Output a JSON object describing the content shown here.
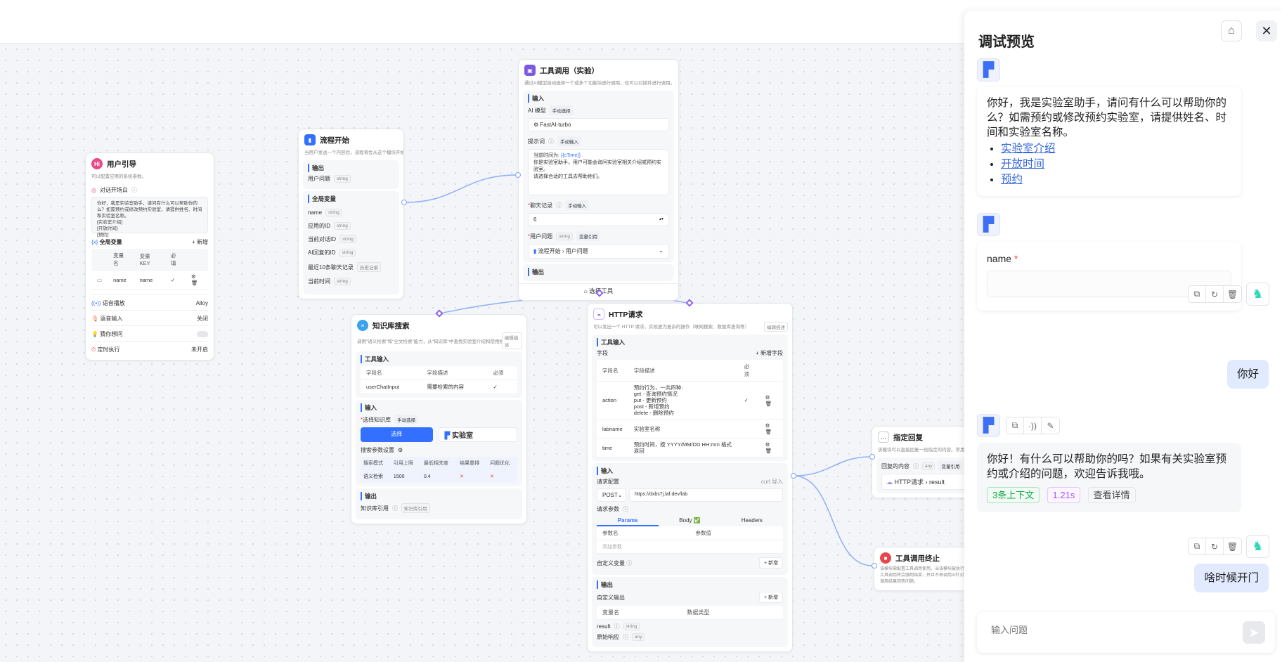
{
  "user_guide": {
    "title": "用户引导",
    "desc": "可以配置应用的系统参数。",
    "welcome_label": "对话开场白",
    "welcome_text": "你好，我是实验室助手，请问有什么可以帮助你的么？如需预约或修改预约实验室，请提供姓名、时间和实验室名称。\n[实验室介绍]\n[开放时间]\n[预约]",
    "global_vars_label": "全局变量",
    "add_label": "+ 新增",
    "var_headers": [
      "变量名",
      "变量 KEY",
      "必填"
    ],
    "vars": [
      {
        "name": "name",
        "key": "name",
        "required": "✓"
      }
    ],
    "tts_label": "语音播放",
    "tts_value": "Alloy",
    "voice_input_label": "语音输入",
    "voice_input_value": "关闭",
    "guess_label": "猜你想问",
    "schedule_label": "定时执行",
    "schedule_value": "未开启"
  },
  "flow_start": {
    "title": "流程开始",
    "desc": "当用户发送一个内容后，流程将会从这个模块开始执行。",
    "output_label": "输出",
    "output": {
      "name": "用户问题",
      "type": "string"
    },
    "globals_label": "全局变量",
    "globals": [
      {
        "name": "name",
        "type": "string"
      },
      {
        "name": "应用的ID",
        "type": "string"
      },
      {
        "name": "当前对话ID",
        "type": "string"
      },
      {
        "name": "AI回复的ID",
        "type": "string"
      },
      {
        "name": "最近10条聊天记录",
        "type": "历史记录"
      },
      {
        "name": "当前时间",
        "type": "string"
      }
    ]
  },
  "tool_call": {
    "title": "工具调用（实验）",
    "desc": "通过AI模型自动选择一个或多个功能块进行调用，也可以对插件进行调用。",
    "input_label": "输入",
    "model_label": "AI 模型",
    "model_mode": "手动选择",
    "model_value": "FastAI-turbo",
    "prompt_label": "提示词",
    "prompt_mode": "手动输入",
    "prompt_var": "{{cTime}}",
    "prompt_line1": "当前时间为: ",
    "prompt_line2": "你是实验室助手，用户可能会询问实验室相关介绍或预约实验室。",
    "prompt_line3": "请选择合适的工具去帮助他们。",
    "history_label": "聊天记录",
    "history_mode": "手动输入",
    "history_value": "6",
    "question_label": "用户问题",
    "question_type": "string",
    "question_mode": "变量引用",
    "question_ref_a": "流程开始",
    "question_ref_b": "用户问题",
    "output_label": "输出",
    "select_tool": "选择工具"
  },
  "kb_search": {
    "title": "知识库搜索",
    "desc": "调用\"语义检索\"和\"全文检索\"能力，从\"知识库\"中查找实验室介绍和使用规则等信息。",
    "edit_desc": "编辑描述",
    "tool_input_label": "工具输入",
    "headers": [
      "字段名",
      "字段描述",
      "必须"
    ],
    "fields": [
      {
        "name": "userChatInput",
        "desc": "需要检索的内容",
        "required": "✓"
      }
    ],
    "input_label": "输入",
    "select_kb_label": "选择知识库",
    "select_kb_mode": "手动选择",
    "select_button": "选择",
    "kb_name": "实验室",
    "params_label": "搜索参数设置",
    "param_headers": [
      "搜索模式",
      "引用上限",
      "最低相关度",
      "结果重排",
      "问题优化"
    ],
    "param_values": [
      "语义检索",
      "1500",
      "0.4",
      "✕",
      "✕"
    ],
    "output_label": "输出",
    "output_name": "知识库引用",
    "output_type": "知识库引用"
  },
  "http": {
    "title": "HTTP请求",
    "desc": "可以发出一个 HTTP 请求，实现更为复杂的操作（联网搜索、数据库查询等）",
    "edit_desc": "编辑描述",
    "tool_input_label": "工具输入",
    "fields_label": "字段",
    "add_field": "+ 新增字段",
    "headers": [
      "字段名",
      "字段描述",
      "必须"
    ],
    "fields": [
      {
        "name": "action",
        "desc": "预约行为，一共四种:\nget - 查询预约情况\nput - 更新预约\npost - 新增预约\ndelete - 删除预约",
        "required": "✓"
      },
      {
        "name": "labname",
        "desc": "实验室名称",
        "required": ""
      },
      {
        "name": "time",
        "desc": "预约时间，按 YYYY/MM/DD HH:mm 格式返回",
        "required": ""
      }
    ],
    "input_label": "输入",
    "req_config": "请求配置",
    "curl_import": "curl 导入",
    "method": "POST",
    "url": "https://dxbs7j.laf.dev/lab",
    "req_params": "请求参数",
    "tabs": [
      "Params",
      "Body ✅",
      "Headers"
    ],
    "param_headers": [
      "参数名",
      "参数值"
    ],
    "add_param": "添加参数",
    "custom_vars": "自定义变量",
    "add": "+ 新增",
    "output_label": "输出",
    "custom_output": "自定义输出",
    "out_headers": [
      "变量名",
      "数据类型"
    ],
    "outputs": [
      {
        "name": "result",
        "type": "string"
      },
      {
        "name": "原始响应",
        "type": "any"
      }
    ]
  },
  "reply": {
    "title": "指定回复",
    "desc": "该模块可以直接回复一段指定的内容。常用于引导、提示。",
    "content_label": "回复的内容",
    "content_type": "any",
    "content_mode": "变量引用",
    "ref_a": "HTTP请求",
    "ref_b": "result"
  },
  "tool_stop": {
    "title": "工具调用终止",
    "desc": "该模块需配置工具调用使用。当该模块被执行时，工具调用将会强制结束，并且不再调用AI针对工具调用结果回答问题。"
  },
  "chat": {
    "title": "调试预览",
    "welcome": "你好，我是实验室助手，请问有什么可以帮助你的么？如需预约或修改预约实验室，请提供姓名、时间和实验室名称。",
    "links": [
      "实验室介绍",
      "开放时间",
      "预约"
    ],
    "form_label": "name",
    "messages": [
      {
        "role": "user",
        "text": "你好"
      },
      {
        "role": "ai",
        "text": "你好！有什么可以帮助你的吗？如果有关实验室预约或介绍的问题，欢迎告诉我哦。",
        "context": "3条上下文",
        "time": "1.21s",
        "detail": "查看详情"
      },
      {
        "role": "user",
        "text": "啥时候开门"
      }
    ],
    "input_placeholder": "输入问题"
  },
  "colors": {
    "accent": "#3370ff",
    "edge": "#8fb0f7",
    "tool_handle": "#8a63f0",
    "user_bubble": "#e1eafe",
    "context_green": "#16a34a",
    "time_purple": "#a855f7"
  }
}
